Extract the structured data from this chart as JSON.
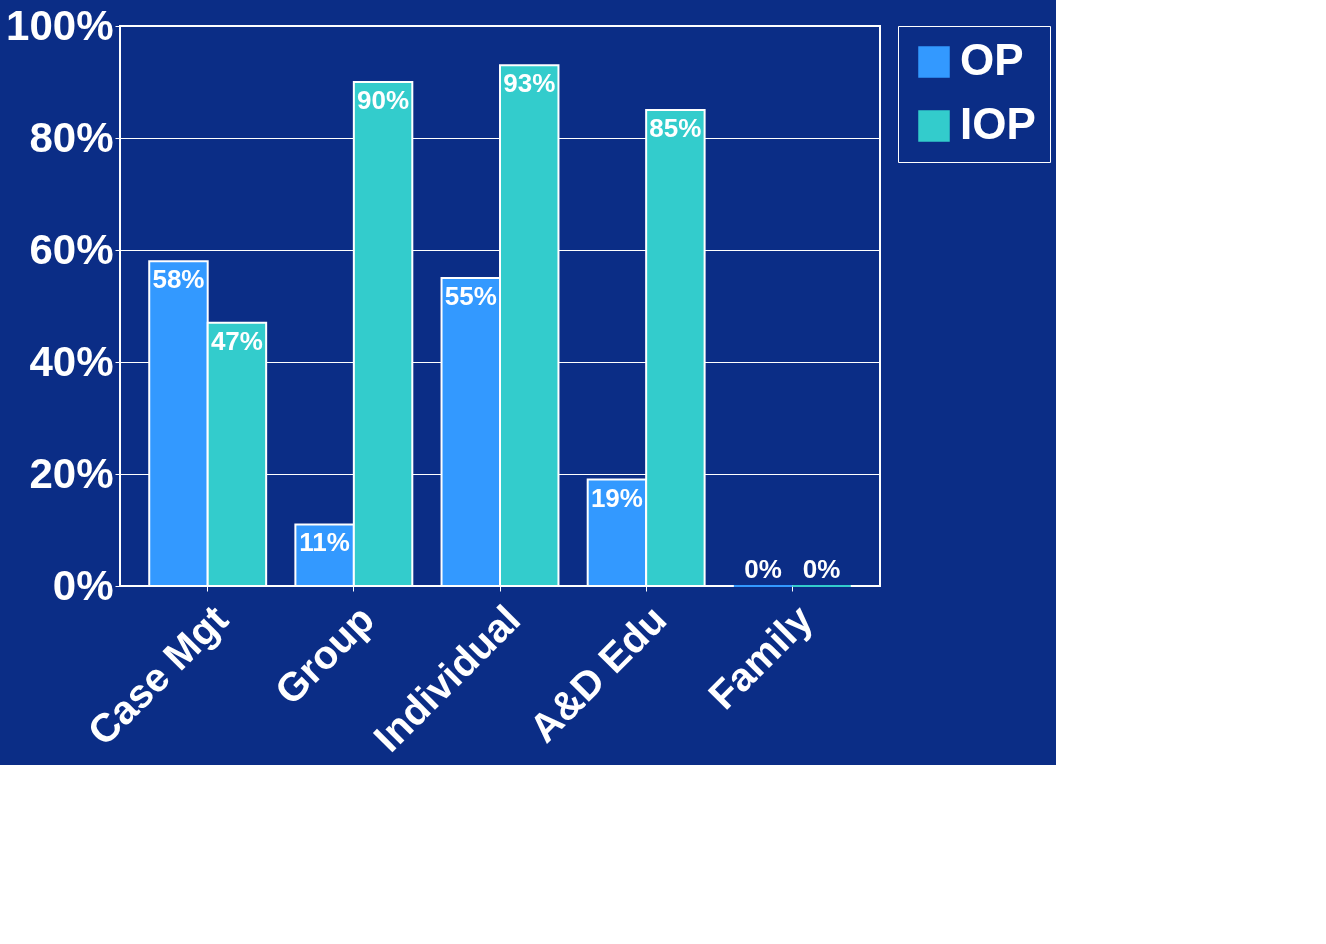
{
  "chart_data": {
    "type": "bar",
    "categories": [
      "Case Mgt",
      "Group",
      "Individual",
      "A&D Edu",
      "Family"
    ],
    "series": [
      {
        "name": "OP",
        "color": "#3399ff",
        "values": [
          58,
          11,
          55,
          19,
          0
        ],
        "value_labels": [
          "58%",
          "11%",
          "55%",
          "19%",
          "0%"
        ]
      },
      {
        "name": "IOP",
        "color": "#33cccc",
        "values": [
          47,
          90,
          93,
          85,
          0
        ],
        "value_labels": [
          "47%",
          "90%",
          "93%",
          "85%",
          "0%"
        ]
      }
    ],
    "ylim": [
      0,
      100
    ],
    "yticks": [
      {
        "value": 0,
        "label": "0%"
      },
      {
        "value": 20,
        "label": "20%"
      },
      {
        "value": 40,
        "label": "40%"
      },
      {
        "value": 60,
        "label": "60%"
      },
      {
        "value": 80,
        "label": "80%"
      },
      {
        "value": 100,
        "label": "100%"
      }
    ],
    "grid": "y",
    "legend": "right"
  }
}
